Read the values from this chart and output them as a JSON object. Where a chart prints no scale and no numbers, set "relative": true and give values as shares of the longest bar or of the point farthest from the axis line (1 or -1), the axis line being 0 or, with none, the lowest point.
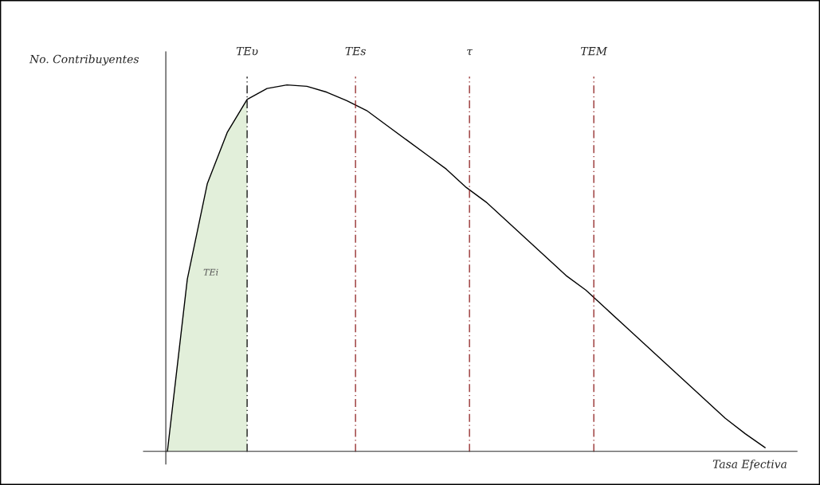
{
  "chart_data": {
    "type": "line",
    "relative": true,
    "xlabel": "Tasa Efectiva",
    "ylabel": "No. Contribuyentes",
    "categories": [
      null,
      null,
      null,
      null,
      null,
      null,
      null,
      null,
      null,
      null,
      null,
      null,
      null,
      null,
      null,
      null,
      null,
      null,
      null,
      null,
      null,
      null,
      null,
      null,
      null,
      null,
      null,
      null,
      null,
      null,
      null
    ],
    "series": [
      {
        "type": "area",
        "color": "#e2efda",
        "values": [
          0,
          0.47,
          0.73,
          0.87,
          0.96,
          null,
          null,
          null,
          null,
          null,
          null,
          null,
          null,
          null,
          null,
          null,
          null,
          null,
          null,
          null,
          null,
          null,
          null,
          null,
          null,
          null,
          null,
          null,
          null,
          null,
          null
        ]
      },
      {
        "color": "#000000",
        "values": [
          0,
          0.47,
          0.73,
          0.87,
          0.96,
          0.99,
          1.0,
          0.996,
          0.98,
          0.957,
          0.93,
          0.89,
          0.85,
          0.81,
          0.77,
          0.72,
          0.68,
          0.63,
          0.58,
          0.53,
          0.48,
          0.44,
          0.39,
          0.34,
          0.29,
          0.24,
          0.19,
          0.14,
          0.09,
          0.048,
          0.01
        ]
      }
    ],
    "annotations": [
      "TEυ",
      "TEs",
      "τ",
      "TEM",
      "TEi"
    ],
    "legend": false,
    "marker": "none",
    "line_style": "solid"
  }
}
